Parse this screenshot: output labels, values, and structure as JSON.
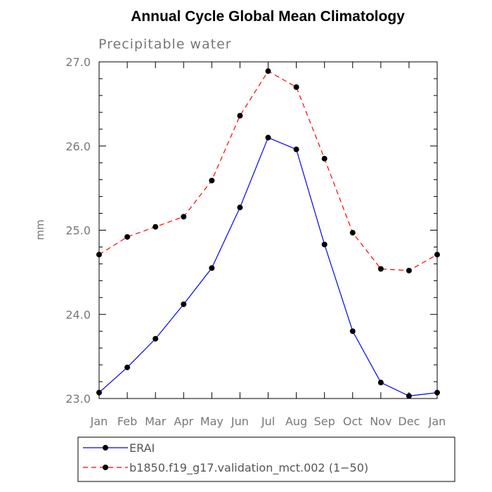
{
  "chart_data": {
    "type": "line",
    "title": "Annual Cycle Global Mean Climatology",
    "subtitle": "Precipitable water",
    "xlabel": "",
    "ylabel": "mm",
    "categories": [
      "Jan",
      "Feb",
      "Mar",
      "Apr",
      "May",
      "Jun",
      "Jul",
      "Aug",
      "Sep",
      "Oct",
      "Nov",
      "Dec",
      "Jan"
    ],
    "ylim": [
      23.0,
      27.0
    ],
    "yticks": [
      23.0,
      24.0,
      25.0,
      26.0,
      27.0
    ],
    "ytick_labels": [
      "23.0",
      "24.0",
      "25.0",
      "26.0",
      "27.0"
    ],
    "grid": false,
    "legend_position": "bottom",
    "series": [
      {
        "name": "ERAI",
        "color": "#0000ff",
        "dash": "solid",
        "values": [
          23.07,
          23.37,
          23.71,
          24.12,
          24.55,
          25.27,
          26.1,
          25.96,
          24.83,
          23.8,
          23.19,
          23.03,
          23.07
        ]
      },
      {
        "name": "b1850.f19_g17.validation_mct.002 (1−50)",
        "color": "#ff0000",
        "dash": "dashed",
        "values": [
          24.71,
          24.92,
          25.04,
          25.16,
          25.59,
          26.36,
          26.89,
          26.7,
          25.85,
          24.97,
          24.54,
          24.52,
          24.71
        ]
      }
    ]
  }
}
